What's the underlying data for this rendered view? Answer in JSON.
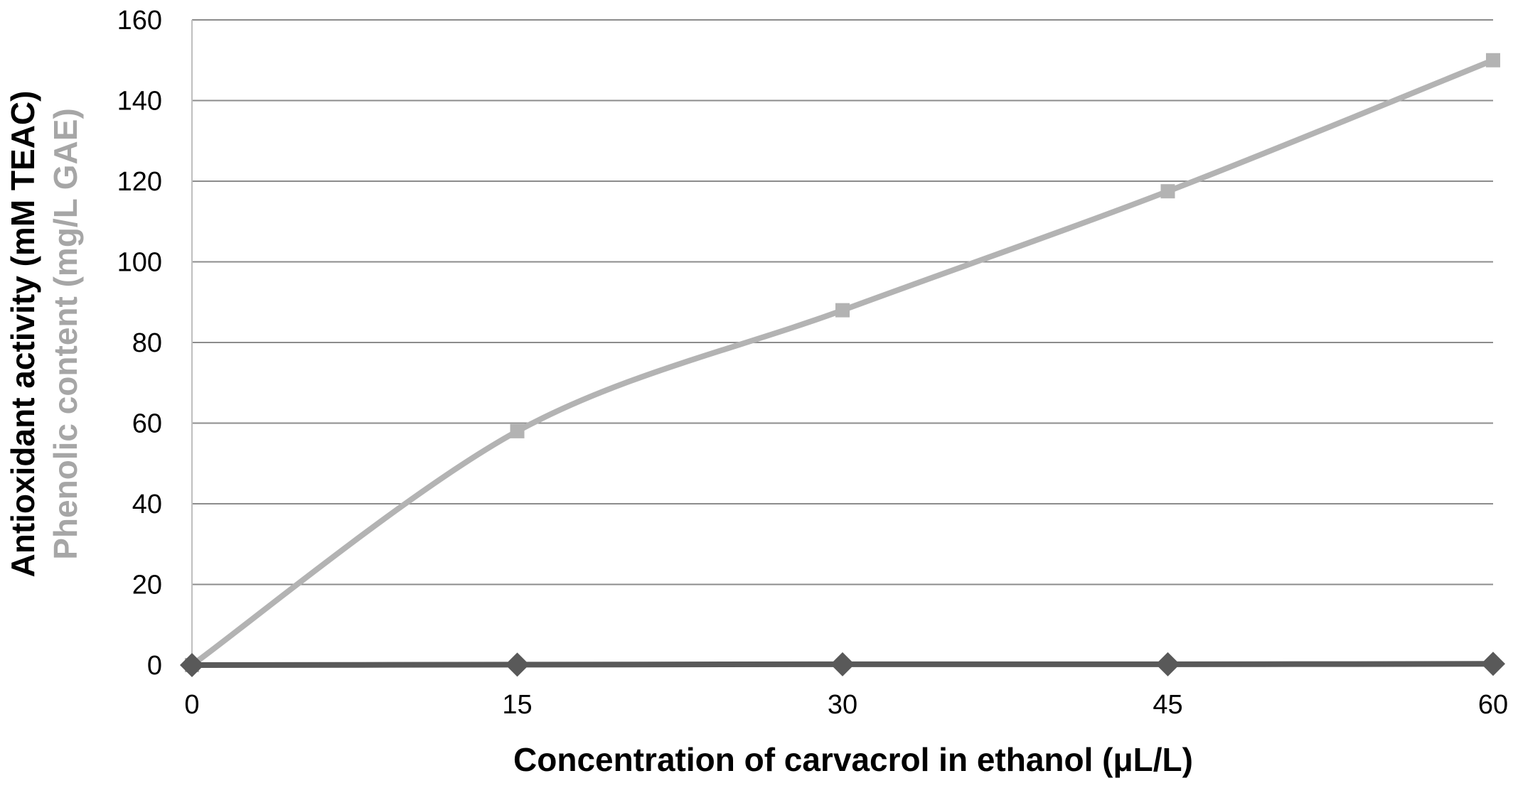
{
  "chart_data": {
    "type": "line",
    "xlabel": "Concentration of carvacrol in ethanol (μL/L)",
    "ylabel": "Antioxidant activity (mM TEAC)",
    "ylabel_secondary": "Phenolic content (mg/L GAE)",
    "xlim": [
      0,
      60
    ],
    "ylim": [
      0,
      160
    ],
    "x_ticks": [
      "0",
      "15",
      "30",
      "45",
      "60"
    ],
    "y_ticks": [
      "0",
      "20",
      "40",
      "60",
      "80",
      "100",
      "120",
      "140",
      "160"
    ],
    "grid": "horizontal",
    "legend": "none",
    "x": [
      0,
      15,
      30,
      45,
      60
    ],
    "series": [
      {
        "values": [
          0.0,
          0.1,
          0.2,
          0.2,
          0.3
        ],
        "color": "#595959",
        "marker": "diamond",
        "ylabel_color": "#000000"
      },
      {
        "values": [
          0.0,
          58.0,
          88.0,
          117.5,
          150.0
        ],
        "color": "#b3b3b3",
        "marker": "square",
        "ylabel_color": "#a6a6a6"
      }
    ]
  }
}
